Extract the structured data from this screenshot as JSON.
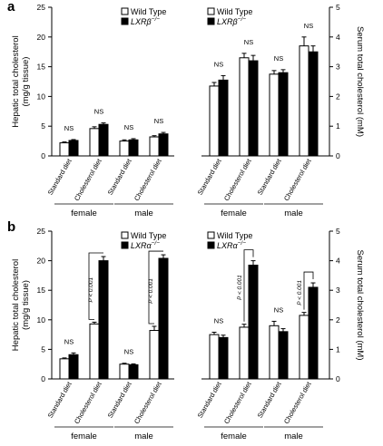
{
  "panels": [
    {
      "letter": "a",
      "legend": {
        "wt": "Wild Type",
        "ko": "LXRβ",
        "ko_sup": "−/−"
      },
      "left": {
        "ylabel_line1": "Hepatic total cholesterol",
        "ylabel_line2": "(mg/g tissue)",
        "ylim": [
          0,
          25
        ],
        "yticks": [
          "0",
          "5",
          "10",
          "15",
          "20",
          "25"
        ]
      },
      "right": {
        "ylabel": "Serum  total cholesterol (mM)",
        "ylim": [
          0,
          5
        ],
        "yticks": [
          "0",
          "1",
          "2",
          "3",
          "4",
          "5"
        ]
      }
    },
    {
      "letter": "b",
      "legend": {
        "wt": "Wild Type",
        "ko": "LXRα",
        "ko_sup": "−/−"
      },
      "left": {
        "ylabel_line1": "Hepatic total cholesterol",
        "ylabel_line2": "(mg/g tissue)",
        "ylim": [
          0,
          25
        ],
        "yticks": [
          "0",
          "5",
          "10",
          "15",
          "20",
          "25"
        ]
      },
      "right": {
        "ylabel": "Serum  total cholesterol (mM)",
        "ylim": [
          0,
          5
        ],
        "yticks": [
          "0",
          "1",
          "2",
          "3",
          "4",
          "5"
        ]
      }
    }
  ],
  "categories": [
    "Standard diet",
    "Cholesterol diet",
    "Standard diet",
    "Cholesterol diet"
  ],
  "groups": [
    "female",
    "male"
  ],
  "chart_data": [
    {
      "type": "bar",
      "panel": "a",
      "side": "left",
      "ylim": [
        0,
        25
      ],
      "categories": [
        "Standard diet",
        "Cholesterol diet",
        "Standard diet",
        "Cholesterol diet"
      ],
      "series": [
        {
          "name": "Wild Type",
          "values": [
            2.2,
            4.6,
            2.5,
            3.2
          ],
          "errors": [
            0.15,
            0.3,
            0.2,
            0.2
          ]
        },
        {
          "name": "LXRβ−/−",
          "values": [
            2.6,
            5.3,
            2.7,
            3.7
          ],
          "errors": [
            0.15,
            0.25,
            0.2,
            0.25
          ]
        }
      ],
      "annotations": [
        "NS",
        "NS",
        "NS",
        "NS"
      ]
    },
    {
      "type": "bar",
      "panel": "a",
      "side": "right",
      "ylim": [
        0,
        5
      ],
      "categories": [
        "Standard diet",
        "Cholesterol diet",
        "Standard diet",
        "Cholesterol diet"
      ],
      "series": [
        {
          "name": "Wild Type",
          "values": [
            2.35,
            3.3,
            2.75,
            3.7
          ],
          "errors": [
            0.12,
            0.15,
            0.12,
            0.3
          ]
        },
        {
          "name": "LXRβ−/−",
          "values": [
            2.55,
            3.2,
            2.8,
            3.5
          ],
          "errors": [
            0.15,
            0.18,
            0.1,
            0.2
          ]
        }
      ],
      "annotations": [
        "NS",
        "NS",
        "NS",
        "NS"
      ]
    },
    {
      "type": "bar",
      "panel": "b",
      "side": "left",
      "ylim": [
        0,
        25
      ],
      "categories": [
        "Standard diet",
        "Cholesterol diet",
        "Standard diet",
        "Cholesterol diet"
      ],
      "series": [
        {
          "name": "Wild Type",
          "values": [
            3.4,
            9.3,
            2.5,
            8.2
          ],
          "errors": [
            0.15,
            0.3,
            0.15,
            0.7
          ]
        },
        {
          "name": "LXRα−/−",
          "values": [
            4.1,
            20.0,
            2.4,
            20.4
          ],
          "errors": [
            0.3,
            0.7,
            0.15,
            0.6
          ]
        }
      ],
      "annotations": [
        "NS",
        "P < 0.001",
        "NS",
        "P < 0.001"
      ]
    },
    {
      "type": "bar",
      "panel": "b",
      "side": "right",
      "ylim": [
        0,
        5
      ],
      "categories": [
        "Standard diet",
        "Cholesterol diet",
        "Standard diet",
        "Cholesterol diet"
      ],
      "series": [
        {
          "name": "Wild Type",
          "values": [
            1.5,
            1.75,
            1.8,
            2.15
          ],
          "errors": [
            0.08,
            0.1,
            0.15,
            0.1
          ]
        },
        {
          "name": "LXRα−/−",
          "values": [
            1.4,
            3.85,
            1.6,
            3.1
          ],
          "errors": [
            0.08,
            0.15,
            0.1,
            0.15
          ]
        }
      ],
      "annotations": [
        "NS",
        "P < 0.001",
        "NS",
        "P < 0.001"
      ]
    }
  ]
}
